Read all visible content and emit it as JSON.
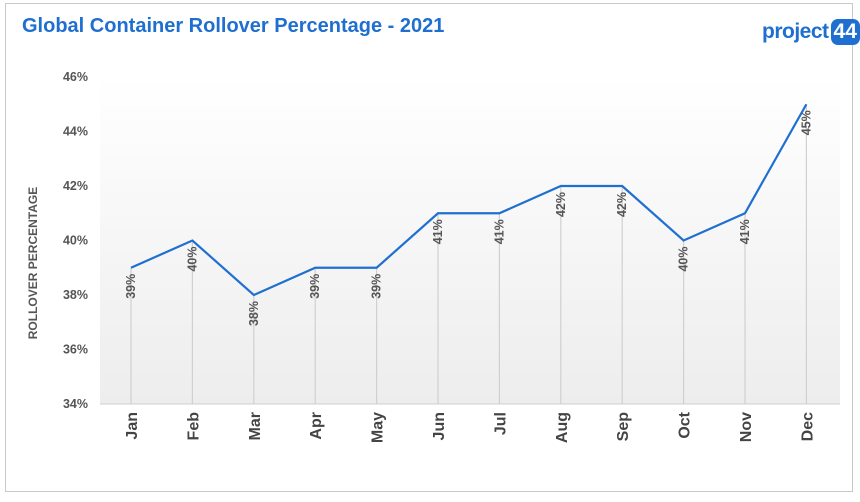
{
  "header": {
    "title": "Global Container Rollover Percentage - 2021",
    "logo_text": "project",
    "logo_badge": "44"
  },
  "colors": {
    "title": "#1f6fd1",
    "line": "#1f6fd1",
    "drop_line": "#d0d0d0",
    "plot_gradient_top": "#ffffff",
    "plot_gradient_bottom": "#ededed"
  },
  "chart_data": {
    "type": "line",
    "title": "Global Container Rollover Percentage - 2021",
    "xlabel": "",
    "ylabel": "ROLLOVER PERCENTAGE",
    "categories": [
      "Jan",
      "Feb",
      "Mar",
      "Apr",
      "May",
      "Jun",
      "Jul",
      "Aug",
      "Sep",
      "Oct",
      "Nov",
      "Dec"
    ],
    "values": [
      39,
      40,
      38,
      39,
      39,
      41,
      41,
      42,
      42,
      40,
      41,
      45
    ],
    "data_labels": [
      "39%",
      "40%",
      "38%",
      "39%",
      "39%",
      "41%",
      "41%",
      "42%",
      "42%",
      "40%",
      "41%",
      "45%"
    ],
    "ylim": [
      34,
      46
    ],
    "yticks": [
      34,
      36,
      38,
      40,
      42,
      44,
      46
    ],
    "ytick_labels": [
      "34%",
      "36%",
      "38%",
      "40%",
      "42%",
      "44%",
      "46%"
    ],
    "grid": false,
    "drop_lines": true,
    "legend": "none"
  }
}
